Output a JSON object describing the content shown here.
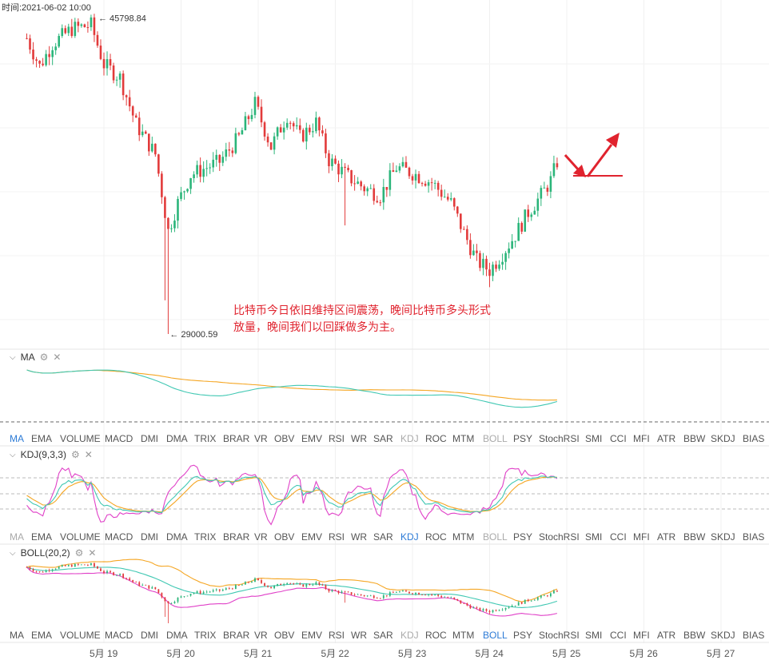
{
  "header": {
    "time_label": "时间:2021-06-02 10:00",
    "high_label": "← 45798.84",
    "low_label": "← 29000.59"
  },
  "annotation": {
    "line1": "比特币今日依旧维持区间震荡，晚间比特币多头形式",
    "line2": "放量，晚间我们以回踩做多为主。"
  },
  "panels": {
    "ma": {
      "title": "MA"
    },
    "kdj": {
      "title": "KDJ(9,3,3)"
    },
    "boll": {
      "title": "BOLL(20,2)"
    }
  },
  "indicator_tabs": [
    "MA",
    "EMA",
    "VOLUME",
    "MACD",
    "DMI",
    "DMA",
    "TRIX",
    "BRAR",
    "VR",
    "OBV",
    "EMV",
    "RSI",
    "WR",
    "SAR",
    "KDJ",
    "ROC",
    "MTM",
    "BOLL",
    "PSY",
    "StochRSI",
    "SMI",
    "CCI",
    "MFI",
    "ATR",
    "BBW",
    "SKDJ",
    "BIAS"
  ],
  "tab_rows": [
    {
      "active": [
        "MA"
      ],
      "disabled": [
        "KDJ",
        "BOLL"
      ]
    },
    {
      "active": [
        "KDJ"
      ],
      "disabled": [
        "MA",
        "BOLL"
      ]
    },
    {
      "active": [
        "BOLL"
      ],
      "disabled": [
        "KDJ"
      ]
    }
  ],
  "date_axis": [
    "5月 19",
    "5月 20",
    "5月 21",
    "5月 22",
    "5月 23",
    "5月 24",
    "5月 25",
    "5月 26",
    "5月 27"
  ],
  "colors": {
    "up": "#2bb57a",
    "down": "#e23b3b",
    "arrow": "#e0232e",
    "ma_fast": "#41c8b3",
    "ma_slow": "#f5a623",
    "kdj_k": "#41c8b3",
    "kdj_d": "#f5a623",
    "kdj_j": "#e040c8",
    "boll_upper": "#f5a623",
    "boll_mid": "#41c8b3",
    "boll_lower": "#e040c8",
    "tab_active": "#2d7bd6"
  },
  "chart_data": {
    "type": "candlestick",
    "title": "",
    "interval": "1h",
    "x_range": [
      "2021-05-18 00:00",
      "2021-05-27 12:00"
    ],
    "y_range": [
      29000,
      46500
    ],
    "price_high": 45798.84,
    "price_low": 29000.59,
    "close_path": [
      [
        "2021-05-18 00:00",
        44800
      ],
      [
        "2021-05-18 04:00",
        43300
      ],
      [
        "2021-05-18 08:00",
        44500
      ],
      [
        "2021-05-18 14:00",
        45300
      ],
      [
        "2021-05-18 20:00",
        45500
      ],
      [
        "2021-05-19 00:00",
        43400
      ],
      [
        "2021-05-19 05:00",
        42700
      ],
      [
        "2021-05-19 10:00",
        40200
      ],
      [
        "2021-05-19 16:00",
        38600
      ],
      [
        "2021-05-19 20:00",
        34500
      ],
      [
        "2021-05-19 23:00",
        36000
      ],
      [
        "2021-05-20 03:00",
        37500
      ],
      [
        "2021-05-20 08:00",
        37900
      ],
      [
        "2021-05-20 12:00",
        38200
      ],
      [
        "2021-05-20 18:00",
        39500
      ],
      [
        "2021-05-20 23:00",
        41300
      ],
      [
        "2021-05-21 04:00",
        39000
      ],
      [
        "2021-05-21 09:00",
        40700
      ],
      [
        "2021-05-21 13:00",
        39500
      ],
      [
        "2021-05-21 18:00",
        40300
      ],
      [
        "2021-05-21 22:00",
        38300
      ],
      [
        "2021-05-22 04:00",
        37400
      ],
      [
        "2021-05-22 09:00",
        36800
      ],
      [
        "2021-05-22 14:00",
        36400
      ],
      [
        "2021-05-22 19:00",
        37900
      ],
      [
        "2021-05-23 00:00",
        37600
      ],
      [
        "2021-05-23 06:00",
        37100
      ],
      [
        "2021-05-23 12:00",
        36000
      ],
      [
        "2021-05-23 16:00",
        34400
      ],
      [
        "2021-05-23 20:00",
        32900
      ],
      [
        "2021-05-24 00:00",
        32400
      ],
      [
        "2021-05-24 04:00",
        33300
      ],
      [
        "2021-05-24 08:00",
        34300
      ],
      [
        "2021-05-24 12:00",
        35500
      ],
      [
        "2021-05-24 16:00",
        36400
      ],
      [
        "2021-05-24 19:00",
        37200
      ],
      [
        "2021-05-24 21:00",
        38200
      ]
    ],
    "wicks": [
      {
        "time": "2021-05-19 20:00",
        "low": 29000.59
      },
      {
        "time": "2021-05-19 19:00",
        "low": 30800
      },
      {
        "time": "2021-05-22 03:00",
        "low": 34800
      },
      {
        "time": "2021-05-24 00:00",
        "low": 31500
      }
    ],
    "annotations": [
      {
        "type": "arrow-down-right",
        "label": ""
      },
      {
        "type": "arrow-up-right",
        "label": ""
      }
    ]
  }
}
